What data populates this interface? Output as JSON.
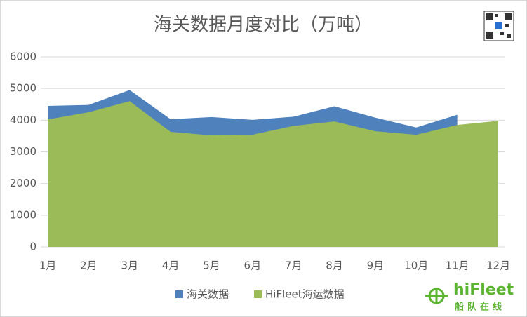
{
  "chart_data": {
    "type": "area",
    "title": "海关数据月度对比（万吨）",
    "categories": [
      "1月",
      "2月",
      "3月",
      "4月",
      "5月",
      "6月",
      "7月",
      "8月",
      "9月",
      "10月",
      "11月",
      "12月"
    ],
    "series": [
      {
        "name": "海关数据",
        "color": "#4f81bd",
        "values": [
          4450,
          4480,
          4950,
          4030,
          4100,
          4010,
          4110,
          4440,
          4080,
          3770,
          4170,
          null
        ]
      },
      {
        "name": "HiFleet海运数据",
        "color": "#9bbb59",
        "values": [
          4020,
          4250,
          4600,
          3630,
          3520,
          3540,
          3820,
          3960,
          3650,
          3540,
          3850,
          3980
        ]
      }
    ],
    "ylim": [
      0,
      6000
    ],
    "yticks": [
      0,
      1000,
      2000,
      3000,
      4000,
      5000,
      6000
    ],
    "grid": true,
    "legend": "bottom"
  },
  "logo": {
    "name": "hiFleet",
    "tagline": "船队在线"
  }
}
